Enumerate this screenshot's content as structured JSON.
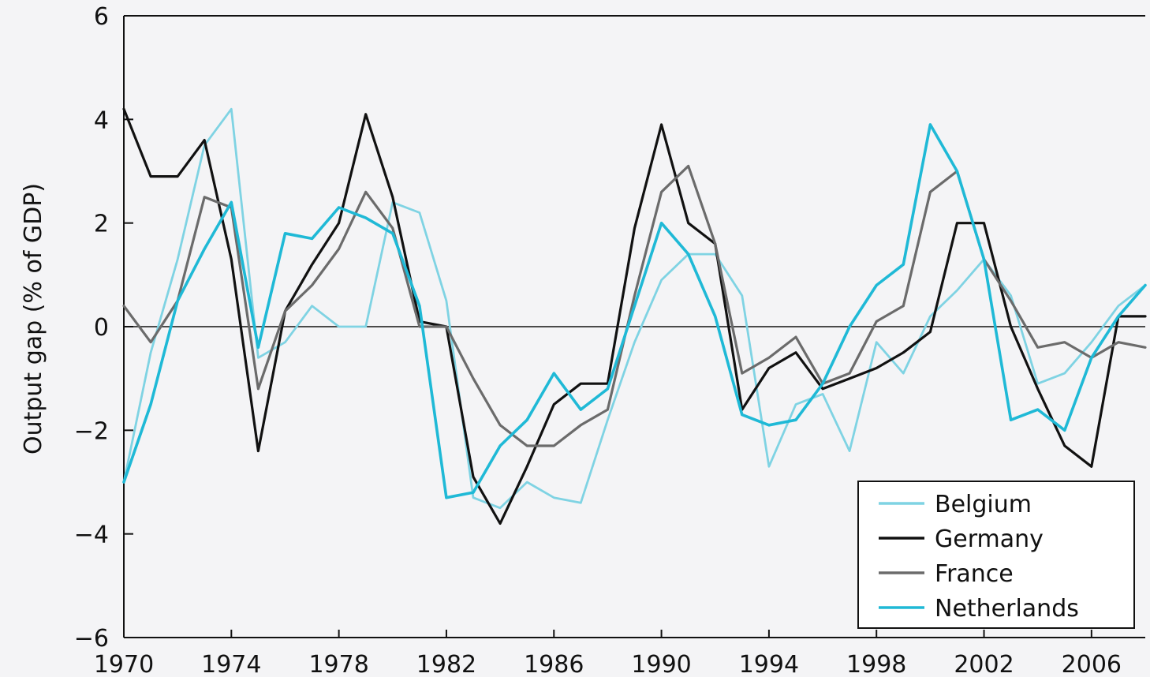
{
  "chart_data": {
    "type": "line",
    "title": "",
    "xlabel": "",
    "ylabel": "Output gap (% of GDP)",
    "xlim": [
      1970,
      2008
    ],
    "ylim": [
      -6,
      6
    ],
    "x_ticks": [
      1970,
      1974,
      1978,
      1982,
      1986,
      1990,
      1994,
      1998,
      2002,
      2006
    ],
    "y_ticks": [
      6,
      4,
      2,
      0,
      -2,
      -4,
      -6
    ],
    "y_tick_labels": [
      "6",
      "4",
      "2",
      "0",
      "−2",
      "−4",
      "−6"
    ],
    "grid": false,
    "zero_line": true,
    "legend_position": "bottom-right",
    "x": [
      1970,
      1971,
      1972,
      1973,
      1974,
      1975,
      1976,
      1977,
      1978,
      1979,
      1980,
      1981,
      1982,
      1983,
      1984,
      1985,
      1986,
      1987,
      1988,
      1989,
      1990,
      1991,
      1992,
      1993,
      1994,
      1995,
      1996,
      1997,
      1998,
      1999,
      2000,
      2001,
      2002,
      2003,
      2004,
      2005,
      2006,
      2007,
      2008
    ],
    "series": [
      {
        "name": "Belgium",
        "color": "#7fd3e3",
        "values": [
          -3.0,
          -0.5,
          1.3,
          3.5,
          4.2,
          -0.6,
          -0.3,
          0.4,
          0.0,
          0.0,
          2.4,
          2.2,
          0.5,
          -3.3,
          -3.5,
          -3.0,
          -3.3,
          -3.4,
          -1.8,
          -0.3,
          0.9,
          1.4,
          1.4,
          0.6,
          -2.7,
          -1.5,
          -1.3,
          -2.4,
          -0.3,
          -0.9,
          0.2,
          0.7,
          1.3,
          0.6,
          -1.1,
          -0.9,
          -0.3,
          0.4,
          0.8
        ]
      },
      {
        "name": "Germany",
        "color": "#111111",
        "values": [
          4.2,
          2.9,
          2.9,
          3.6,
          1.3,
          -2.4,
          0.3,
          1.2,
          2.0,
          4.1,
          2.5,
          0.1,
          0.0,
          -2.9,
          -3.8,
          -2.7,
          -1.5,
          -1.1,
          -1.1,
          1.9,
          3.9,
          2.0,
          1.6,
          -1.6,
          -0.8,
          -0.5,
          -1.2,
          -1.0,
          -0.8,
          -0.5,
          -0.1,
          2.0,
          2.0,
          0.0,
          -1.2,
          -2.3,
          -2.7,
          0.2,
          0.2
        ]
      },
      {
        "name": "France",
        "color": "#6b6b6b",
        "values": [
          0.4,
          -0.3,
          0.5,
          2.5,
          2.3,
          -1.2,
          0.3,
          0.8,
          1.5,
          2.6,
          1.9,
          0.0,
          0.0,
          -1.0,
          -1.9,
          -2.3,
          -2.3,
          -1.9,
          -1.6,
          0.6,
          2.6,
          3.1,
          1.6,
          -0.9,
          -0.6,
          -0.2,
          -1.1,
          -0.9,
          0.1,
          0.4,
          2.6,
          3.0,
          1.3,
          0.5,
          -0.4,
          -0.3,
          -0.6,
          -0.3,
          -0.4
        ]
      },
      {
        "name": "Netherlands",
        "color": "#1fb9d6",
        "values": [
          -3.0,
          -1.5,
          0.5,
          1.5,
          2.4,
          -0.4,
          1.8,
          1.7,
          2.3,
          2.1,
          1.8,
          0.4,
          -3.3,
          -3.2,
          -2.3,
          -1.8,
          -0.9,
          -1.6,
          -1.2,
          0.4,
          2.0,
          1.4,
          0.2,
          -1.7,
          -1.9,
          -1.8,
          -1.1,
          0.0,
          0.8,
          1.2,
          3.9,
          3.0,
          1.3,
          -1.8,
          -1.6,
          -2.0,
          -0.6,
          0.2,
          0.8
        ]
      }
    ]
  }
}
